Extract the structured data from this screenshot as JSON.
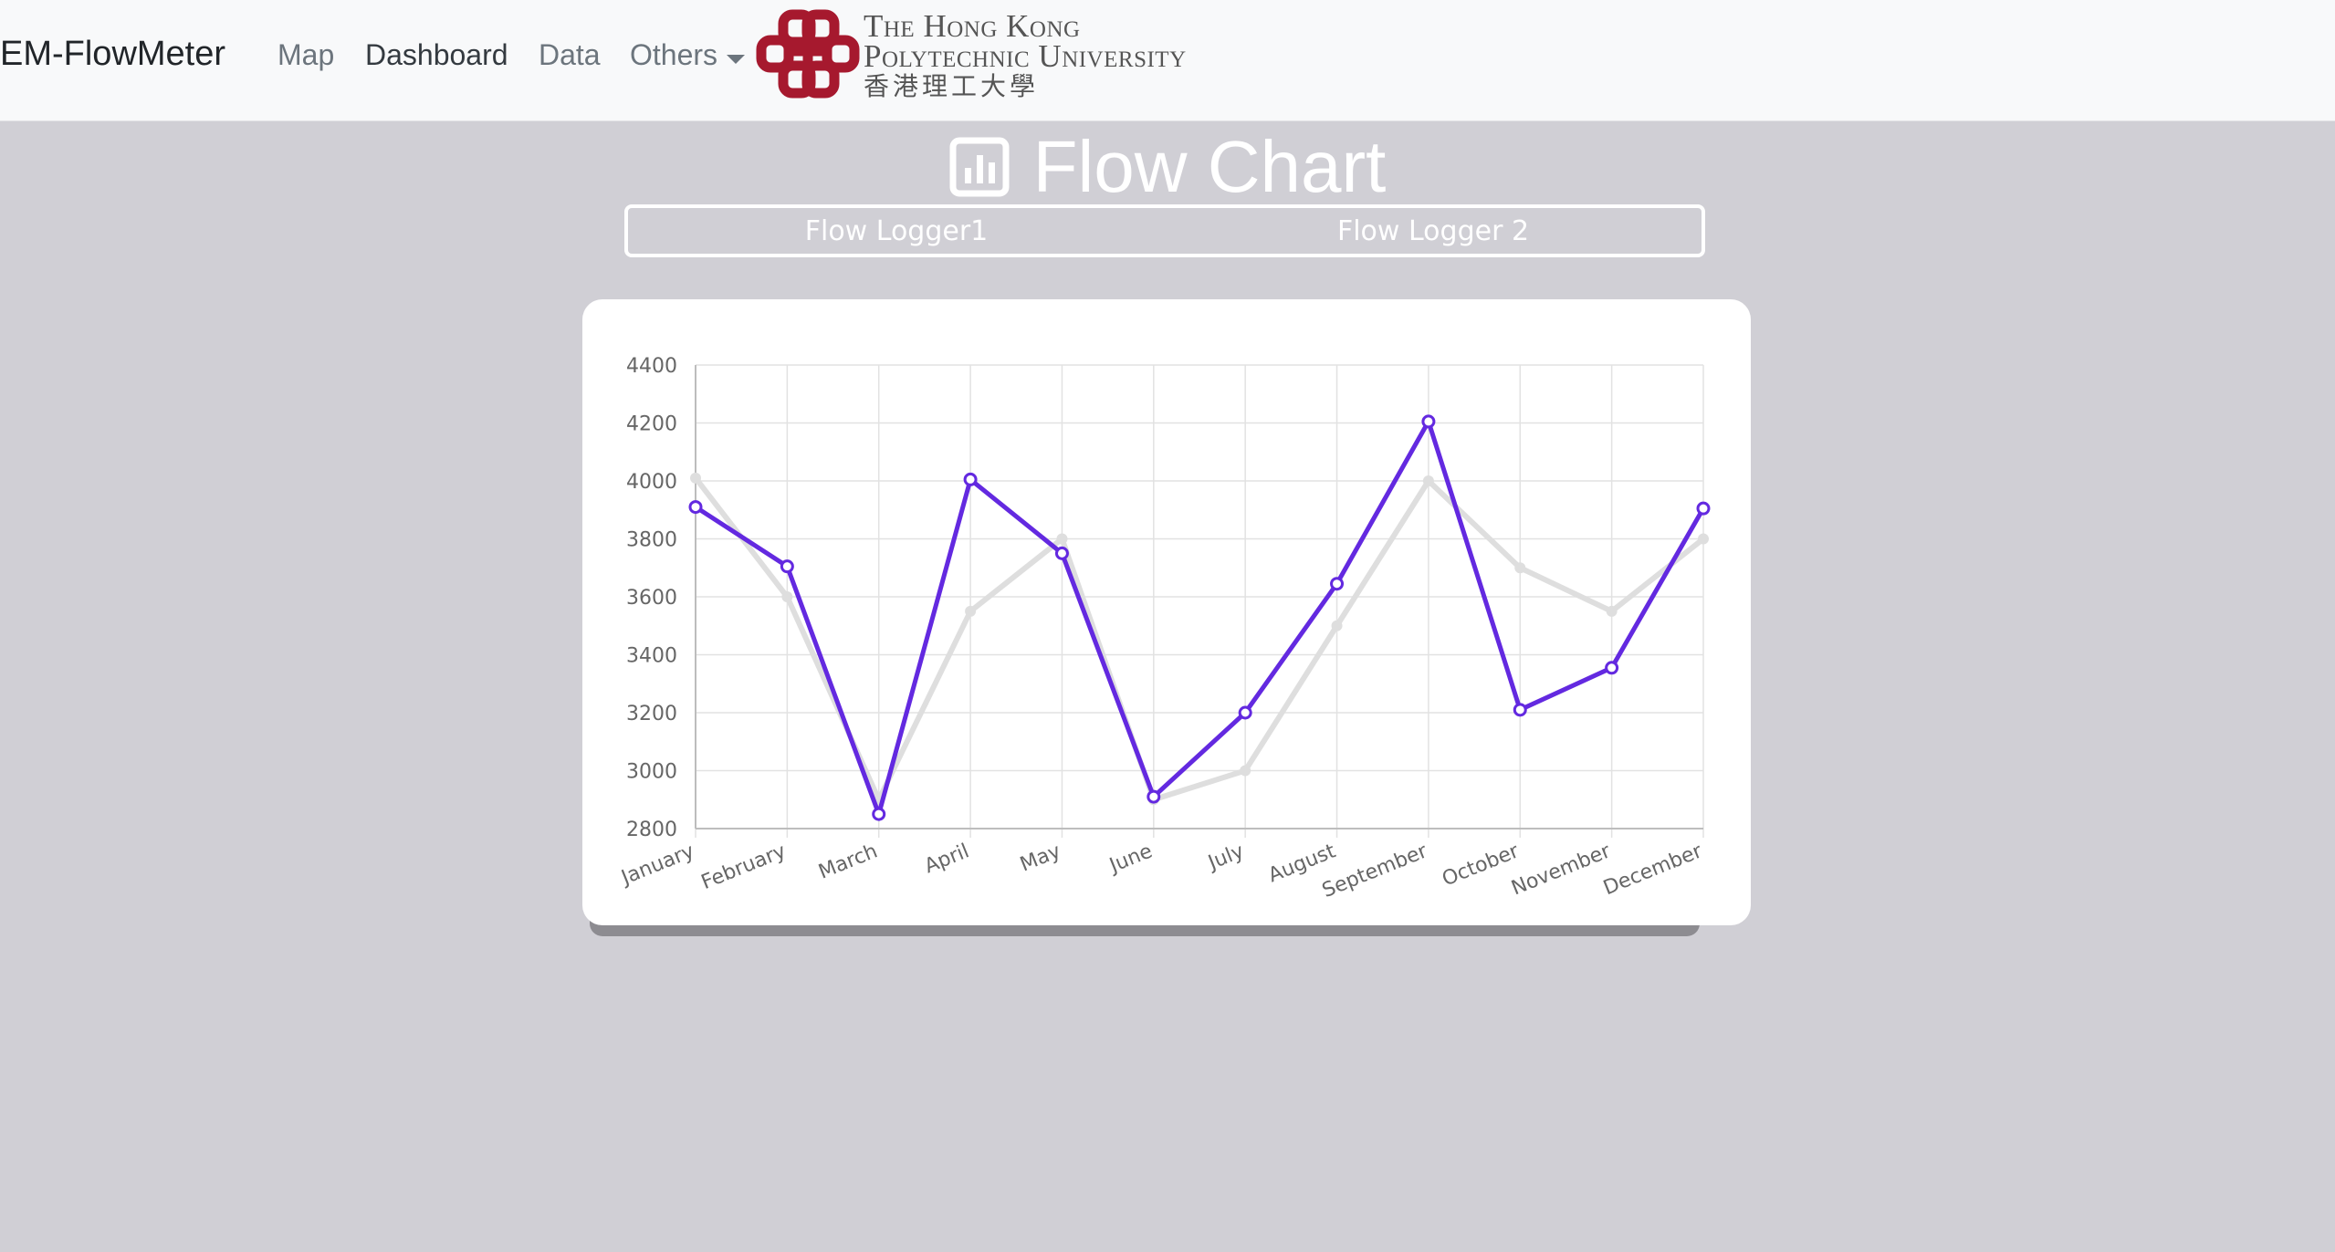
{
  "navbar": {
    "brand": "EM-FlowMeter",
    "links": [
      {
        "label": "Map"
      },
      {
        "label": "Dashboard"
      },
      {
        "label": "Data"
      },
      {
        "label": "Others"
      }
    ],
    "logo": {
      "line1": "The Hong Kong",
      "line2": "Polytechnic University",
      "line3": "香港理工大學",
      "color": "#a6192e"
    }
  },
  "heading": {
    "icon": "bar-chart-icon",
    "title": "Flow Chart"
  },
  "tabs": [
    {
      "label": "Flow Logger1"
    },
    {
      "label": "Flow Logger 2"
    }
  ],
  "chart_data": {
    "type": "line",
    "categories": [
      "January",
      "February",
      "March",
      "April",
      "May",
      "June",
      "July",
      "August",
      "September",
      "October",
      "November",
      "December"
    ],
    "series": [
      {
        "color": "#dedede",
        "values": [
          4010,
          3600,
          2900,
          3550,
          3800,
          2900,
          3000,
          3500,
          4000,
          3700,
          3550,
          3800
        ]
      },
      {
        "color": "#6329e0",
        "values": [
          3910,
          3705,
          2850,
          4005,
          3750,
          2910,
          3200,
          3645,
          4205,
          3210,
          3355,
          3905
        ]
      }
    ],
    "ylim": [
      2800,
      4400
    ],
    "yticks": [
      4400,
      4200,
      4000,
      3800,
      3600,
      3400,
      3200,
      3000,
      2800
    ],
    "grid": true
  }
}
